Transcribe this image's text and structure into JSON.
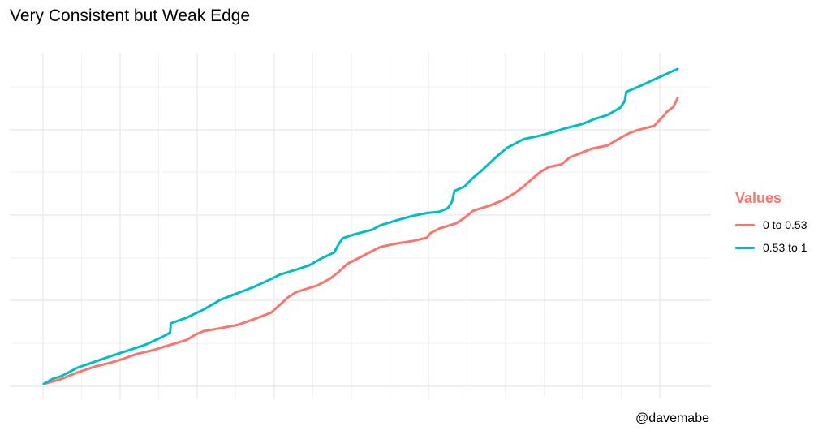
{
  "chart_data": {
    "type": "line",
    "title": "Very Consistent but Weak Edge",
    "caption": "@davemabe",
    "legend_title": "Values",
    "grid": true,
    "x_tick_labels": [],
    "y_tick_labels": [],
    "series": [
      {
        "name": "0 to 0.53",
        "color": "#F8766D",
        "points": [
          [
            0,
            0
          ],
          [
            20,
            1.4
          ],
          [
            40,
            3.5
          ],
          [
            60,
            5.3
          ],
          [
            80,
            6.6
          ],
          [
            95,
            7.8
          ],
          [
            110,
            9.2
          ],
          [
            130,
            10.4
          ],
          [
            150,
            12.0
          ],
          [
            170,
            13.6
          ],
          [
            180,
            15.2
          ],
          [
            190,
            16.3
          ],
          [
            210,
            17.2
          ],
          [
            230,
            18.2
          ],
          [
            250,
            20.0
          ],
          [
            270,
            22.0
          ],
          [
            280,
            24.3
          ],
          [
            290,
            26.7
          ],
          [
            300,
            28.4
          ],
          [
            315,
            29.6
          ],
          [
            325,
            30.4
          ],
          [
            340,
            32.5
          ],
          [
            350,
            34.5
          ],
          [
            360,
            37.0
          ],
          [
            375,
            39.0
          ],
          [
            390,
            41.0
          ],
          [
            400,
            42.3
          ],
          [
            420,
            43.4
          ],
          [
            440,
            44.2
          ],
          [
            455,
            45.2
          ],
          [
            460,
            46.7
          ],
          [
            470,
            48.0
          ],
          [
            490,
            49.6
          ],
          [
            500,
            51.3
          ],
          [
            510,
            53.5
          ],
          [
            530,
            55.1
          ],
          [
            545,
            56.7
          ],
          [
            560,
            59.0
          ],
          [
            570,
            61.0
          ],
          [
            580,
            63.3
          ],
          [
            590,
            65.5
          ],
          [
            600,
            67.0
          ],
          [
            615,
            67.8
          ],
          [
            625,
            70.0
          ],
          [
            640,
            71.5
          ],
          [
            650,
            72.6
          ],
          [
            670,
            73.7
          ],
          [
            685,
            76.0
          ],
          [
            695,
            77.4
          ],
          [
            705,
            78.4
          ],
          [
            725,
            79.7
          ],
          [
            737,
            83.0
          ],
          [
            740,
            84.0
          ],
          [
            748,
            85.6
          ],
          [
            753,
            88.3
          ]
        ]
      },
      {
        "name": "0.53 to 1",
        "color": "#00BFC4",
        "points": [
          [
            0,
            0
          ],
          [
            10,
            1.5
          ],
          [
            20,
            2.3
          ],
          [
            30,
            3.6
          ],
          [
            40,
            5.0
          ],
          [
            60,
            6.8
          ],
          [
            80,
            8.6
          ],
          [
            100,
            10.3
          ],
          [
            120,
            12.0
          ],
          [
            140,
            14.4
          ],
          [
            150,
            15.8
          ],
          [
            151,
            18.7
          ],
          [
            170,
            20.5
          ],
          [
            190,
            23.0
          ],
          [
            210,
            26.0
          ],
          [
            230,
            28.0
          ],
          [
            250,
            30.0
          ],
          [
            270,
            32.4
          ],
          [
            280,
            33.7
          ],
          [
            300,
            35.3
          ],
          [
            315,
            36.6
          ],
          [
            330,
            38.8
          ],
          [
            345,
            40.6
          ],
          [
            350,
            43.0
          ],
          [
            355,
            45.0
          ],
          [
            370,
            46.3
          ],
          [
            390,
            47.6
          ],
          [
            400,
            49.0
          ],
          [
            420,
            50.6
          ],
          [
            440,
            52.0
          ],
          [
            455,
            52.8
          ],
          [
            470,
            53.2
          ],
          [
            480,
            54.3
          ],
          [
            485,
            56.3
          ],
          [
            488,
            59.6
          ],
          [
            500,
            61.0
          ],
          [
            510,
            63.7
          ],
          [
            520,
            65.8
          ],
          [
            530,
            68.3
          ],
          [
            540,
            70.7
          ],
          [
            550,
            72.9
          ],
          [
            570,
            75.6
          ],
          [
            590,
            76.7
          ],
          [
            605,
            77.8
          ],
          [
            620,
            79.0
          ],
          [
            640,
            80.3
          ],
          [
            655,
            81.9
          ],
          [
            670,
            83.1
          ],
          [
            685,
            85.4
          ],
          [
            690,
            87.3
          ],
          [
            692,
            90.2
          ],
          [
            710,
            92.2
          ],
          [
            730,
            94.6
          ],
          [
            745,
            96.4
          ],
          [
            753,
            97.3
          ]
        ]
      }
    ]
  }
}
